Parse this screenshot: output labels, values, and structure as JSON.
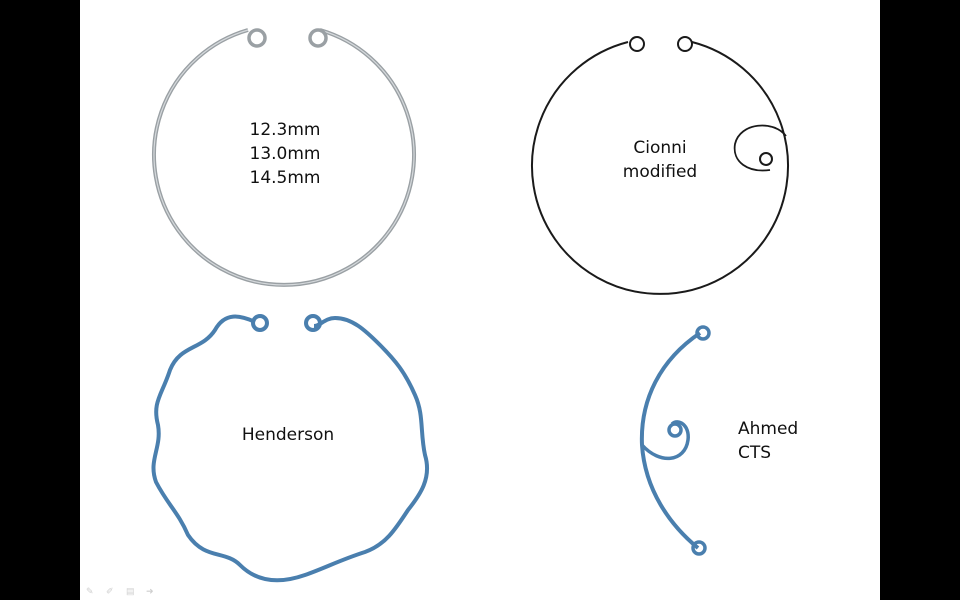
{
  "sizes_label": {
    "line1": "12.3mm",
    "line2": "13.0mm",
    "line3": "14.5mm"
  },
  "cionni_label": {
    "line1": "Cionni",
    "line2": "modified"
  },
  "henderson_label": {
    "line1": "Henderson"
  },
  "ahmed_label": {
    "line1": "Ahmed",
    "line2": "CTS"
  },
  "toolbar": {
    "icons": [
      "pen-icon",
      "pencil-icon",
      "slides-icon",
      "arrow-icon"
    ]
  },
  "colors": {
    "ring_gray": "#8a9094",
    "ring_black": "#1a1a1a",
    "ring_blue": "#4a7fae"
  }
}
